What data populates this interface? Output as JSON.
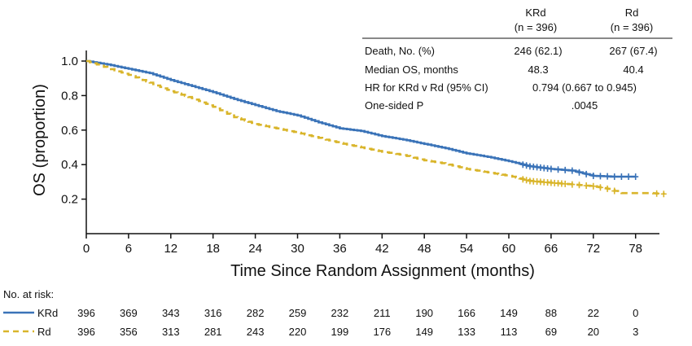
{
  "chart_data": {
    "type": "line",
    "title": "",
    "xlabel": "Time Since Random Assignment (months)",
    "ylabel": "OS (proportion)",
    "xlim": [
      0,
      84
    ],
    "ylim": [
      0,
      1.05
    ],
    "xticks": [
      0,
      6,
      12,
      18,
      24,
      30,
      36,
      42,
      48,
      54,
      60,
      66,
      72,
      78
    ],
    "xtick_labels": [
      "0",
      "6",
      "12",
      "18",
      "24",
      "30",
      "36",
      "42",
      "48",
      "54",
      "60",
      "66",
      "72",
      "78"
    ],
    "yticks": [
      0.2,
      0.4,
      0.6,
      0.8,
      1.0
    ],
    "ytick_labels": [
      "0.2",
      "0.4",
      "0.6",
      "0.8",
      "1.0"
    ],
    "grid": false,
    "series": [
      {
        "name": "KRd",
        "color": "#3a73b8",
        "style": "solid",
        "x": [
          0,
          3,
          6,
          9,
          12,
          15,
          18,
          21,
          24,
          27,
          30,
          33,
          36,
          39,
          42,
          45,
          48,
          51,
          54,
          57,
          60,
          63,
          66,
          69,
          72,
          75,
          78
        ],
        "y": [
          1.0,
          0.98,
          0.955,
          0.93,
          0.89,
          0.855,
          0.82,
          0.78,
          0.745,
          0.71,
          0.685,
          0.645,
          0.61,
          0.595,
          0.565,
          0.545,
          0.52,
          0.495,
          0.465,
          0.445,
          0.42,
          0.39,
          0.375,
          0.365,
          0.335,
          0.33,
          0.33
        ],
        "censor_x": [
          62,
          62.5,
          63,
          63.5,
          64,
          64.5,
          65,
          65.5,
          66,
          67,
          68,
          69,
          70,
          71,
          72,
          73,
          74,
          75,
          76,
          77,
          78
        ]
      },
      {
        "name": "Rd",
        "color": "#d9b52b",
        "style": "dashed",
        "x": [
          0,
          3,
          6,
          9,
          12,
          15,
          18,
          21,
          24,
          27,
          30,
          33,
          36,
          39,
          42,
          45,
          48,
          51,
          54,
          57,
          60,
          63,
          66,
          69,
          72,
          74,
          76,
          78,
          80,
          82
        ],
        "y": [
          1.0,
          0.96,
          0.92,
          0.875,
          0.825,
          0.785,
          0.735,
          0.675,
          0.635,
          0.61,
          0.585,
          0.555,
          0.525,
          0.5,
          0.475,
          0.455,
          0.425,
          0.405,
          0.375,
          0.355,
          0.335,
          0.305,
          0.295,
          0.285,
          0.275,
          0.26,
          0.235,
          0.235,
          0.235,
          0.23
        ],
        "censor_x": [
          62,
          62.5,
          63,
          63.5,
          64,
          64.5,
          65,
          65.5,
          66,
          66.5,
          67,
          67.5,
          68,
          69,
          70,
          71,
          72,
          73,
          74,
          75,
          81,
          82
        ]
      }
    ],
    "stats_table": {
      "columns": [
        {
          "name": "KRd",
          "n": "(n = 396)"
        },
        {
          "name": "Rd",
          "n": "(n = 396)"
        }
      ],
      "rows": [
        {
          "label": "Death, No. (%)",
          "values": [
            "246 (62.1)",
            "267 (67.4)"
          ]
        },
        {
          "label": "Median OS, months",
          "values": [
            "48.3",
            "40.4"
          ]
        },
        {
          "label": "HR for KRd v Rd  (95% CI)",
          "span": "0.794 (0.667 to 0.945)"
        },
        {
          "label": "One-sided P",
          "span": ".0045"
        }
      ]
    },
    "at_risk": {
      "title": "No. at risk:",
      "times": [
        0,
        6,
        12,
        18,
        24,
        30,
        36,
        42,
        48,
        54,
        60,
        66,
        72,
        78
      ],
      "rows": [
        {
          "name": "KRd",
          "values": [
            "396",
            "369",
            "343",
            "316",
            "282",
            "259",
            "232",
            "211",
            "190",
            "166",
            "149",
            "88",
            "22",
            "0"
          ]
        },
        {
          "name": "Rd",
          "values": [
            "396",
            "356",
            "313",
            "281",
            "243",
            "220",
            "199",
            "176",
            "149",
            "133",
            "113",
            "69",
            "20",
            "3"
          ]
        }
      ]
    }
  }
}
